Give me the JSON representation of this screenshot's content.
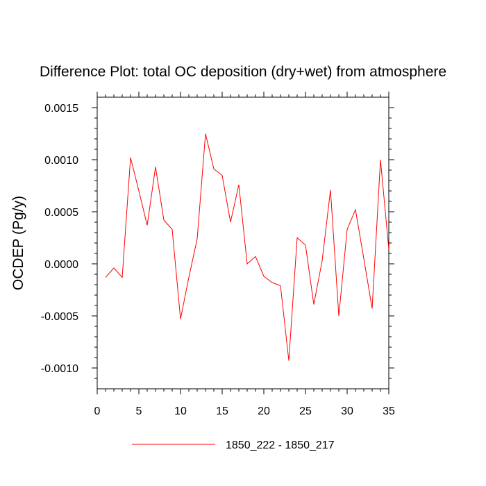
{
  "chart_data": {
    "type": "line",
    "title": "Difference Plot: total OC deposition (dry+wet) from atmosphere",
    "ylabel": "OCDEP  (Pg/y)",
    "xlabel": "",
    "xlim": [
      0,
      35
    ],
    "ylim": [
      -0.0012,
      0.0016
    ],
    "x_ticks": [
      0,
      5,
      10,
      15,
      20,
      25,
      30,
      35
    ],
    "x_tick_labels": [
      "0",
      "5",
      "10",
      "15",
      "20",
      "25",
      "30",
      "35"
    ],
    "y_ticks": [
      -0.001,
      -0.0005,
      0,
      0.0005,
      0.001,
      0.0015
    ],
    "y_tick_labels": [
      "-0.0010",
      "-0.0005",
      "0.0000",
      "0.0005",
      "0.0010",
      "0.0015"
    ],
    "grid": false,
    "legend_position": "bottom-center",
    "series": [
      {
        "name": "1850_222 - 1850_217",
        "color": "#ff0000",
        "x": [
          1,
          2,
          3,
          4,
          5,
          6,
          7,
          8,
          9,
          10,
          11,
          12,
          13,
          14,
          15,
          16,
          17,
          18,
          19,
          20,
          21,
          22,
          23,
          24,
          25,
          26,
          27,
          28,
          29,
          30,
          31,
          32,
          33,
          34,
          35
        ],
        "values": [
          -0.00013,
          -4e-05,
          -0.00013,
          0.00102,
          0.0007,
          0.00037,
          0.00093,
          0.00042,
          0.00033,
          -0.00053,
          -0.00013,
          0.00024,
          0.00125,
          0.00091,
          0.00085,
          0.0004,
          0.00076,
          0.0,
          7e-05,
          -0.00012,
          -0.00018,
          -0.00021,
          -0.00093,
          0.00025,
          0.00018,
          -0.00039,
          3e-05,
          0.00071,
          -0.0005,
          0.00033,
          0.00052,
          5e-05,
          -0.00043,
          0.001,
          0.00014
        ]
      }
    ]
  }
}
